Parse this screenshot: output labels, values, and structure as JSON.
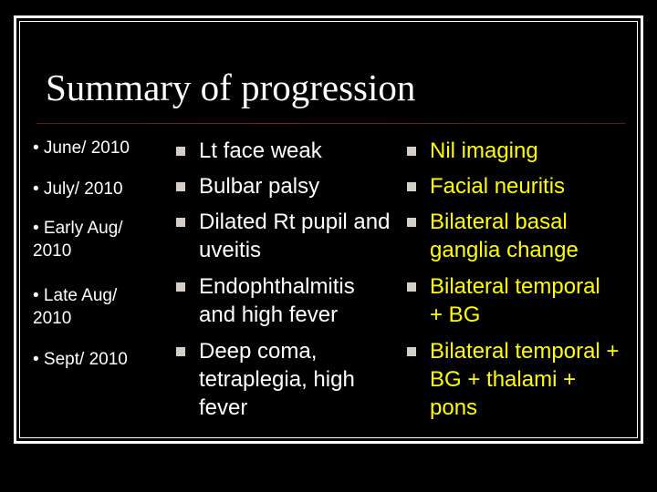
{
  "slide": {
    "title": "Summary of progression",
    "dates": [
      "• June/ 2010",
      "• July/ 2010",
      "• Early Aug/ 2010",
      "• Late Aug/ 2010",
      "• Sept/ 2010"
    ],
    "findings": [
      "Lt face weak",
      "Bulbar palsy",
      "Dilated Rt pupil and uveitis",
      "Endophthalmitis and high fever",
      "Deep coma, tetraplegia, high fever"
    ],
    "imaging": [
      "Nil imaging",
      "Facial neuritis",
      "Bilateral basal ganglia change",
      "Bilateral temporal + BG",
      "Bilateral temporal + BG + thalami + pons"
    ]
  },
  "colors": {
    "background": "#000000",
    "text": "#ffffff",
    "imaging_text": "#ffff00",
    "bullet": "#d4d0c8"
  }
}
